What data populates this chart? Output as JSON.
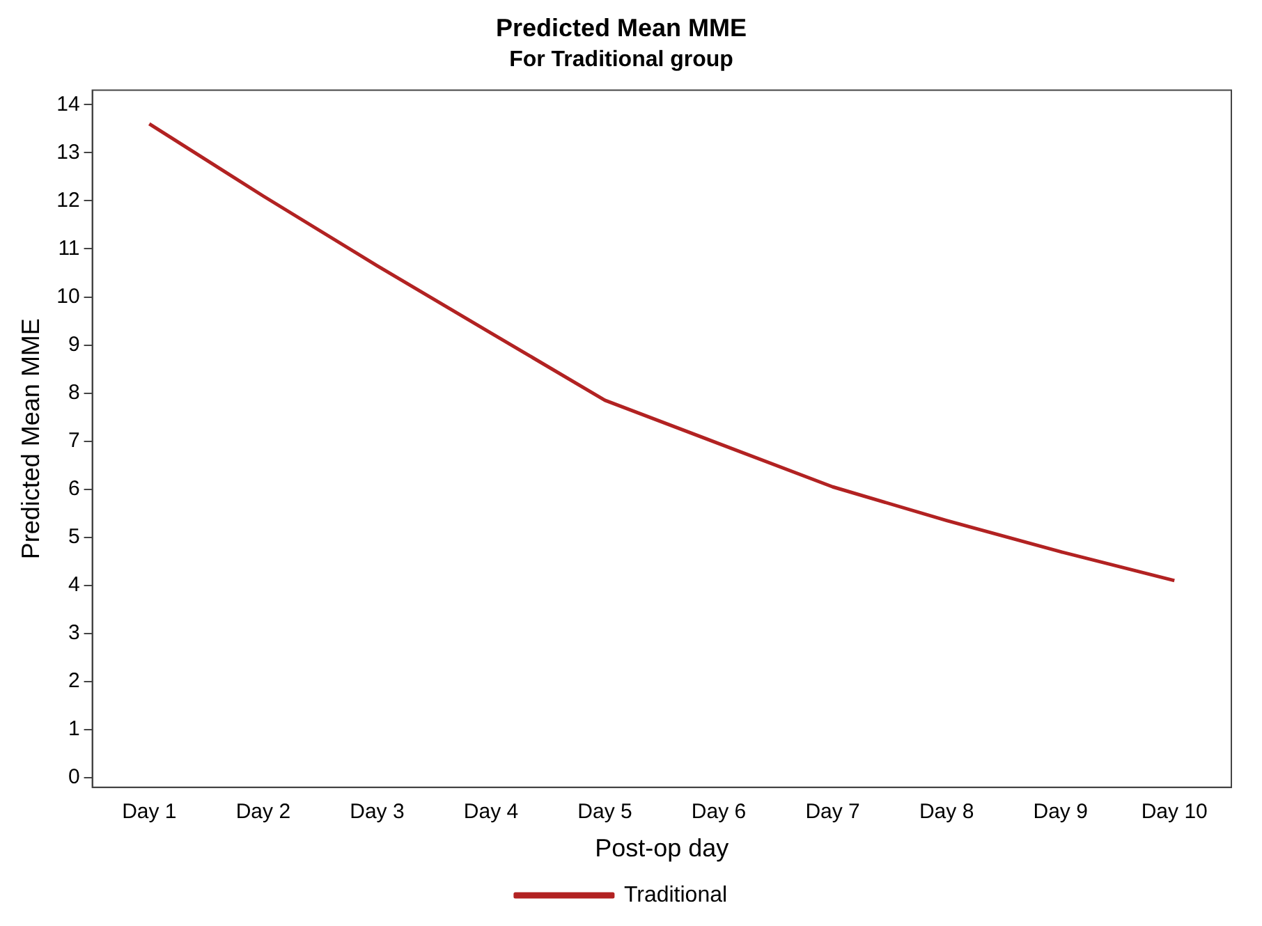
{
  "chart_data": {
    "type": "line",
    "title": "Predicted Mean MME",
    "subtitle": "For Traditional group",
    "xlabel": "Post-op day",
    "ylabel": "Predicted Mean MME",
    "categories": [
      "Day 1",
      "Day 2",
      "Day 3",
      "Day 4",
      "Day 5",
      "Day 6",
      "Day 7",
      "Day 8",
      "Day 9",
      "Day 10"
    ],
    "series": [
      {
        "name": "Traditional",
        "color": "#b22222",
        "values": [
          13.6,
          12.1,
          10.65,
          9.25,
          7.85,
          6.95,
          6.05,
          5.35,
          4.7,
          4.1
        ]
      }
    ],
    "ylim": [
      -0.2,
      14.3
    ],
    "yticks": [
      0,
      1,
      2,
      3,
      4,
      5,
      6,
      7,
      8,
      9,
      10,
      11,
      12,
      13,
      14
    ],
    "grid": false,
    "legend": "bottom",
    "marker": "none",
    "line_style": "solid"
  }
}
